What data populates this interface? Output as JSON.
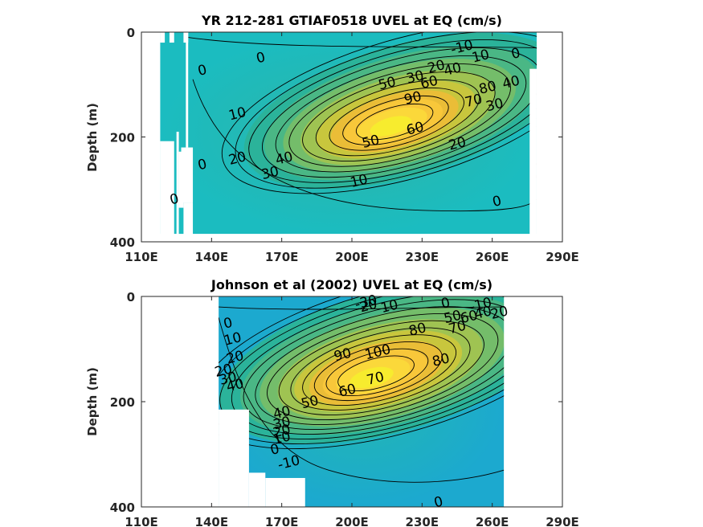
{
  "chart_data": [
    {
      "type": "contour",
      "title": "YR 212-281 GTIAF0518 UVEL at EQ (cm/s)",
      "xlabel": "",
      "ylabel": "Depth (m)",
      "xlim": [
        110,
        290
      ],
      "ylim": [
        0,
        400
      ],
      "x_ticks": [
        "110E",
        "140E",
        "170E",
        "200E",
        "230E",
        "260E",
        "290E"
      ],
      "y_ticks": [
        "0",
        "200",
        "400"
      ],
      "data_extent": {
        "x": [
          118,
          279
        ],
        "depth": [
          0,
          385
        ]
      },
      "core": {
        "lon": 222,
        "depth": 150,
        "max": 95
      },
      "contour_labels": [
        {
          "text": "-10",
          "lon": 247,
          "depth": 28
        },
        {
          "text": "10",
          "lon": 255,
          "depth": 45
        },
        {
          "text": "0",
          "lon": 270,
          "depth": 40
        },
        {
          "text": "0",
          "lon": 161,
          "depth": 48
        },
        {
          "text": "20",
          "lon": 236,
          "depth": 65
        },
        {
          "text": "30",
          "lon": 227,
          "depth": 85
        },
        {
          "text": "50",
          "lon": 215,
          "depth": 97
        },
        {
          "text": "40",
          "lon": 243,
          "depth": 70
        },
        {
          "text": "60",
          "lon": 233,
          "depth": 95
        },
        {
          "text": "90",
          "lon": 226,
          "depth": 125
        },
        {
          "text": "80",
          "lon": 258,
          "depth": 105
        },
        {
          "text": "70",
          "lon": 252,
          "depth": 130
        },
        {
          "text": "40",
          "lon": 268,
          "depth": 95
        },
        {
          "text": "30",
          "lon": 261,
          "depth": 138
        },
        {
          "text": "0",
          "lon": 136,
          "depth": 72
        },
        {
          "text": "10",
          "lon": 151,
          "depth": 155
        },
        {
          "text": "60",
          "lon": 227,
          "depth": 183
        },
        {
          "text": "50",
          "lon": 208,
          "depth": 208
        },
        {
          "text": "20",
          "lon": 151,
          "depth": 240
        },
        {
          "text": "40",
          "lon": 171,
          "depth": 240
        },
        {
          "text": "30",
          "lon": 165,
          "depth": 268
        },
        {
          "text": "20",
          "lon": 245,
          "depth": 212
        },
        {
          "text": "0",
          "lon": 136,
          "depth": 252
        },
        {
          "text": "10",
          "lon": 203,
          "depth": 283
        },
        {
          "text": "0",
          "lon": 124,
          "depth": 318
        },
        {
          "text": "0",
          "lon": 262,
          "depth": 322
        }
      ]
    },
    {
      "type": "contour",
      "title": "Johnson et al (2002) UVEL at EQ (cm/s)",
      "xlabel": "",
      "ylabel": "Depth (m)",
      "xlim": [
        110,
        290
      ],
      "ylim": [
        0,
        400
      ],
      "x_ticks": [
        "110E",
        "140E",
        "170E",
        "200E",
        "230E",
        "260E",
        "290E"
      ],
      "y_ticks": [
        "0",
        "200",
        "400"
      ],
      "data_extent": {
        "x": [
          143,
          265
        ],
        "depth": [
          0,
          400
        ]
      },
      "core": {
        "lon": 215,
        "depth": 125,
        "max": 105
      },
      "contour_labels": [
        {
          "text": "-30",
          "lon": 206,
          "depth": 10
        },
        {
          "text": "-20",
          "lon": 206,
          "depth": 18
        },
        {
          "text": "10",
          "lon": 216,
          "depth": 18
        },
        {
          "text": "0",
          "lon": 240,
          "depth": 12
        },
        {
          "text": "-10",
          "lon": 255,
          "depth": 15
        },
        {
          "text": "50",
          "lon": 243,
          "depth": 38
        },
        {
          "text": "60",
          "lon": 250,
          "depth": 38
        },
        {
          "text": "40",
          "lon": 256,
          "depth": 30
        },
        {
          "text": "20",
          "lon": 263,
          "depth": 30
        },
        {
          "text": "80",
          "lon": 228,
          "depth": 62
        },
        {
          "text": "70",
          "lon": 245,
          "depth": 58
        },
        {
          "text": "0",
          "lon": 147,
          "depth": 50
        },
        {
          "text": "10",
          "lon": 149,
          "depth": 80
        },
        {
          "text": "100",
          "lon": 211,
          "depth": 105
        },
        {
          "text": "90",
          "lon": 196,
          "depth": 110
        },
        {
          "text": "20",
          "lon": 150,
          "depth": 115
        },
        {
          "text": "80",
          "lon": 238,
          "depth": 120
        },
        {
          "text": "20",
          "lon": 145,
          "depth": 140
        },
        {
          "text": "30",
          "lon": 147,
          "depth": 155
        },
        {
          "text": "40",
          "lon": 150,
          "depth": 168
        },
        {
          "text": "70",
          "lon": 210,
          "depth": 155
        },
        {
          "text": "60",
          "lon": 198,
          "depth": 178
        },
        {
          "text": "50",
          "lon": 182,
          "depth": 200
        },
        {
          "text": "40",
          "lon": 170,
          "depth": 220
        },
        {
          "text": "30",
          "lon": 170,
          "depth": 240
        },
        {
          "text": "20",
          "lon": 170,
          "depth": 255
        },
        {
          "text": "10",
          "lon": 170,
          "depth": 268
        },
        {
          "text": "0",
          "lon": 167,
          "depth": 290
        },
        {
          "text": "-10",
          "lon": 173,
          "depth": 315
        },
        {
          "text": "0",
          "lon": 237,
          "depth": 390
        }
      ]
    }
  ]
}
